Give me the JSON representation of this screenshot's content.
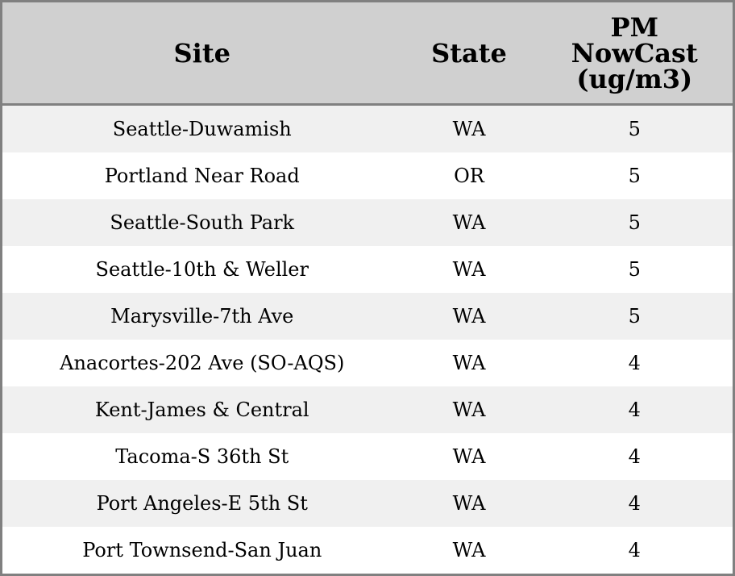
{
  "table": {
    "headers": [
      "Site",
      "State",
      "PM NowCast (ug/m3)"
    ],
    "header_lines": {
      "pm": [
        "PM",
        "NowCast",
        "(ug/m3)"
      ]
    },
    "rows": [
      [
        "Seattle-Duwamish",
        "WA",
        "5"
      ],
      [
        "Portland Near Road",
        "OR",
        "5"
      ],
      [
        "Seattle-South Park",
        "WA",
        "5"
      ],
      [
        "Seattle-10th & Weller",
        "WA",
        "5"
      ],
      [
        "Marysville-7th Ave",
        "WA",
        "5"
      ],
      [
        "Anacortes-202 Ave (SO-AQS)",
        "WA",
        "4"
      ],
      [
        "Kent-James & Central",
        "WA",
        "4"
      ],
      [
        "Tacoma-S 36th St",
        "WA",
        "4"
      ],
      [
        "Port Angeles-E 5th St",
        "WA",
        "4"
      ],
      [
        "Port Townsend-San Juan",
        "WA",
        "4"
      ]
    ]
  },
  "colors": {
    "header_bg": "#d0d0d0",
    "stripe_bg": "#f0f0f0",
    "border": "#808080"
  }
}
